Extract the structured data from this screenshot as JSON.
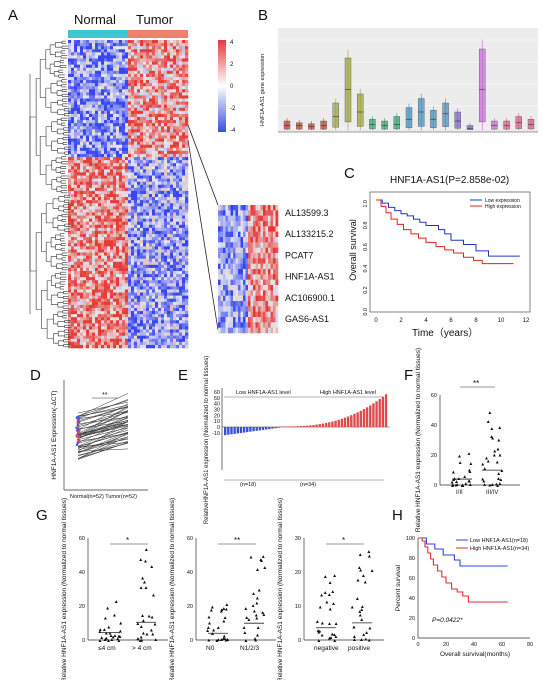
{
  "panels": {
    "A": {
      "letter": "A",
      "group_normal": "Normal",
      "group_tumor": "Tumor",
      "legend_ticks": [
        "4",
        "2",
        "0",
        "-2",
        "-4"
      ],
      "genes": [
        "AL13599.3",
        "AL133215.2",
        "PCAT7",
        "HNF1A-AS1",
        "AC106900.1",
        "GAS6-AS1"
      ],
      "highlight_gene": "HNF1A-AS1",
      "colors": {
        "high": "#e8383b",
        "low": "#3a4fd8",
        "normal_bar": "#3fc6cf",
        "tumor_bar": "#f08070",
        "highlight": "#e8232a"
      }
    },
    "B": {
      "letter": "B",
      "ylabel": "HNF1A-AS1 gene expression",
      "colors": [
        "#c0392b",
        "#9aa038",
        "#2e9e6a",
        "#3b8fc0",
        "#7a5fbf",
        "#c06ad0",
        "#d05a7a"
      ]
    },
    "C": {
      "letter": "C",
      "title": "HNF1A-AS1(P=2.858e-02)",
      "xlabel": "Time（years）",
      "ylabel": "Overall survival",
      "xticks": [
        "0",
        "2",
        "4",
        "6",
        "8",
        "10",
        "12"
      ],
      "yticks": [
        "0.0",
        "0.2",
        "0.4",
        "0.6",
        "0.8",
        "1.0"
      ],
      "legend": [
        "Low expression",
        "High expression"
      ],
      "colors": {
        "low": "#2233cc",
        "high": "#e02020"
      }
    },
    "D": {
      "letter": "D",
      "ylabel": "HNF1A-AS1 Expression(-ΔCT)",
      "xlabel": "Normal(n=52) Tumor(n=52)",
      "sig": "**"
    },
    "E": {
      "letter": "E",
      "ylabel": "RelativeHNF1A-AS1 expression (Normalized to normal tissues)",
      "low_label": "Low HNF1A-AS1 level",
      "high_label": "High HNF1A-AS1 level",
      "n_low": "(n=18)",
      "n_high": "(n=34)",
      "yticks": [
        "60",
        "50",
        "40",
        "30",
        "20",
        "10",
        "0",
        "-10"
      ]
    },
    "F": {
      "letter": "F",
      "ylabel": "Relative HNF1A-AS1 expression (Normalized to normal tissues)",
      "yticks": [
        "60",
        "40",
        "20",
        "0"
      ],
      "categories": [
        "I/II",
        "III/IV"
      ],
      "sig": "**"
    },
    "G": {
      "letter": "G",
      "ylabel": "Relative HNF1A-AS1 expression (Normalized to normal tissues)",
      "yticks": [
        "60",
        "40",
        "20",
        "0"
      ],
      "yticks3": [
        "30",
        "20",
        "10",
        "0"
      ],
      "cat1": [
        "≤4 cm",
        "> 4 cm"
      ],
      "cat2": [
        "N0",
        "N1/2/3"
      ],
      "cat3": [
        "negative",
        "positive"
      ],
      "sig1": "*",
      "sig2": "**",
      "sig3": "*"
    },
    "H": {
      "letter": "H",
      "ylabel": "Percent survival",
      "xlabel": "Overall survival(months)",
      "xticks": [
        "0",
        "20",
        "40",
        "60",
        "80"
      ],
      "yticks": [
        "100",
        "80",
        "60",
        "40",
        "20",
        "0"
      ],
      "legend": [
        "Low HNF1A-AS1(n=18)",
        "High HNF1A-AS1(n=34)"
      ],
      "pvalue": "P=0.0422*",
      "colors": {
        "low": "#3344dd",
        "high": "#e03030"
      }
    }
  }
}
